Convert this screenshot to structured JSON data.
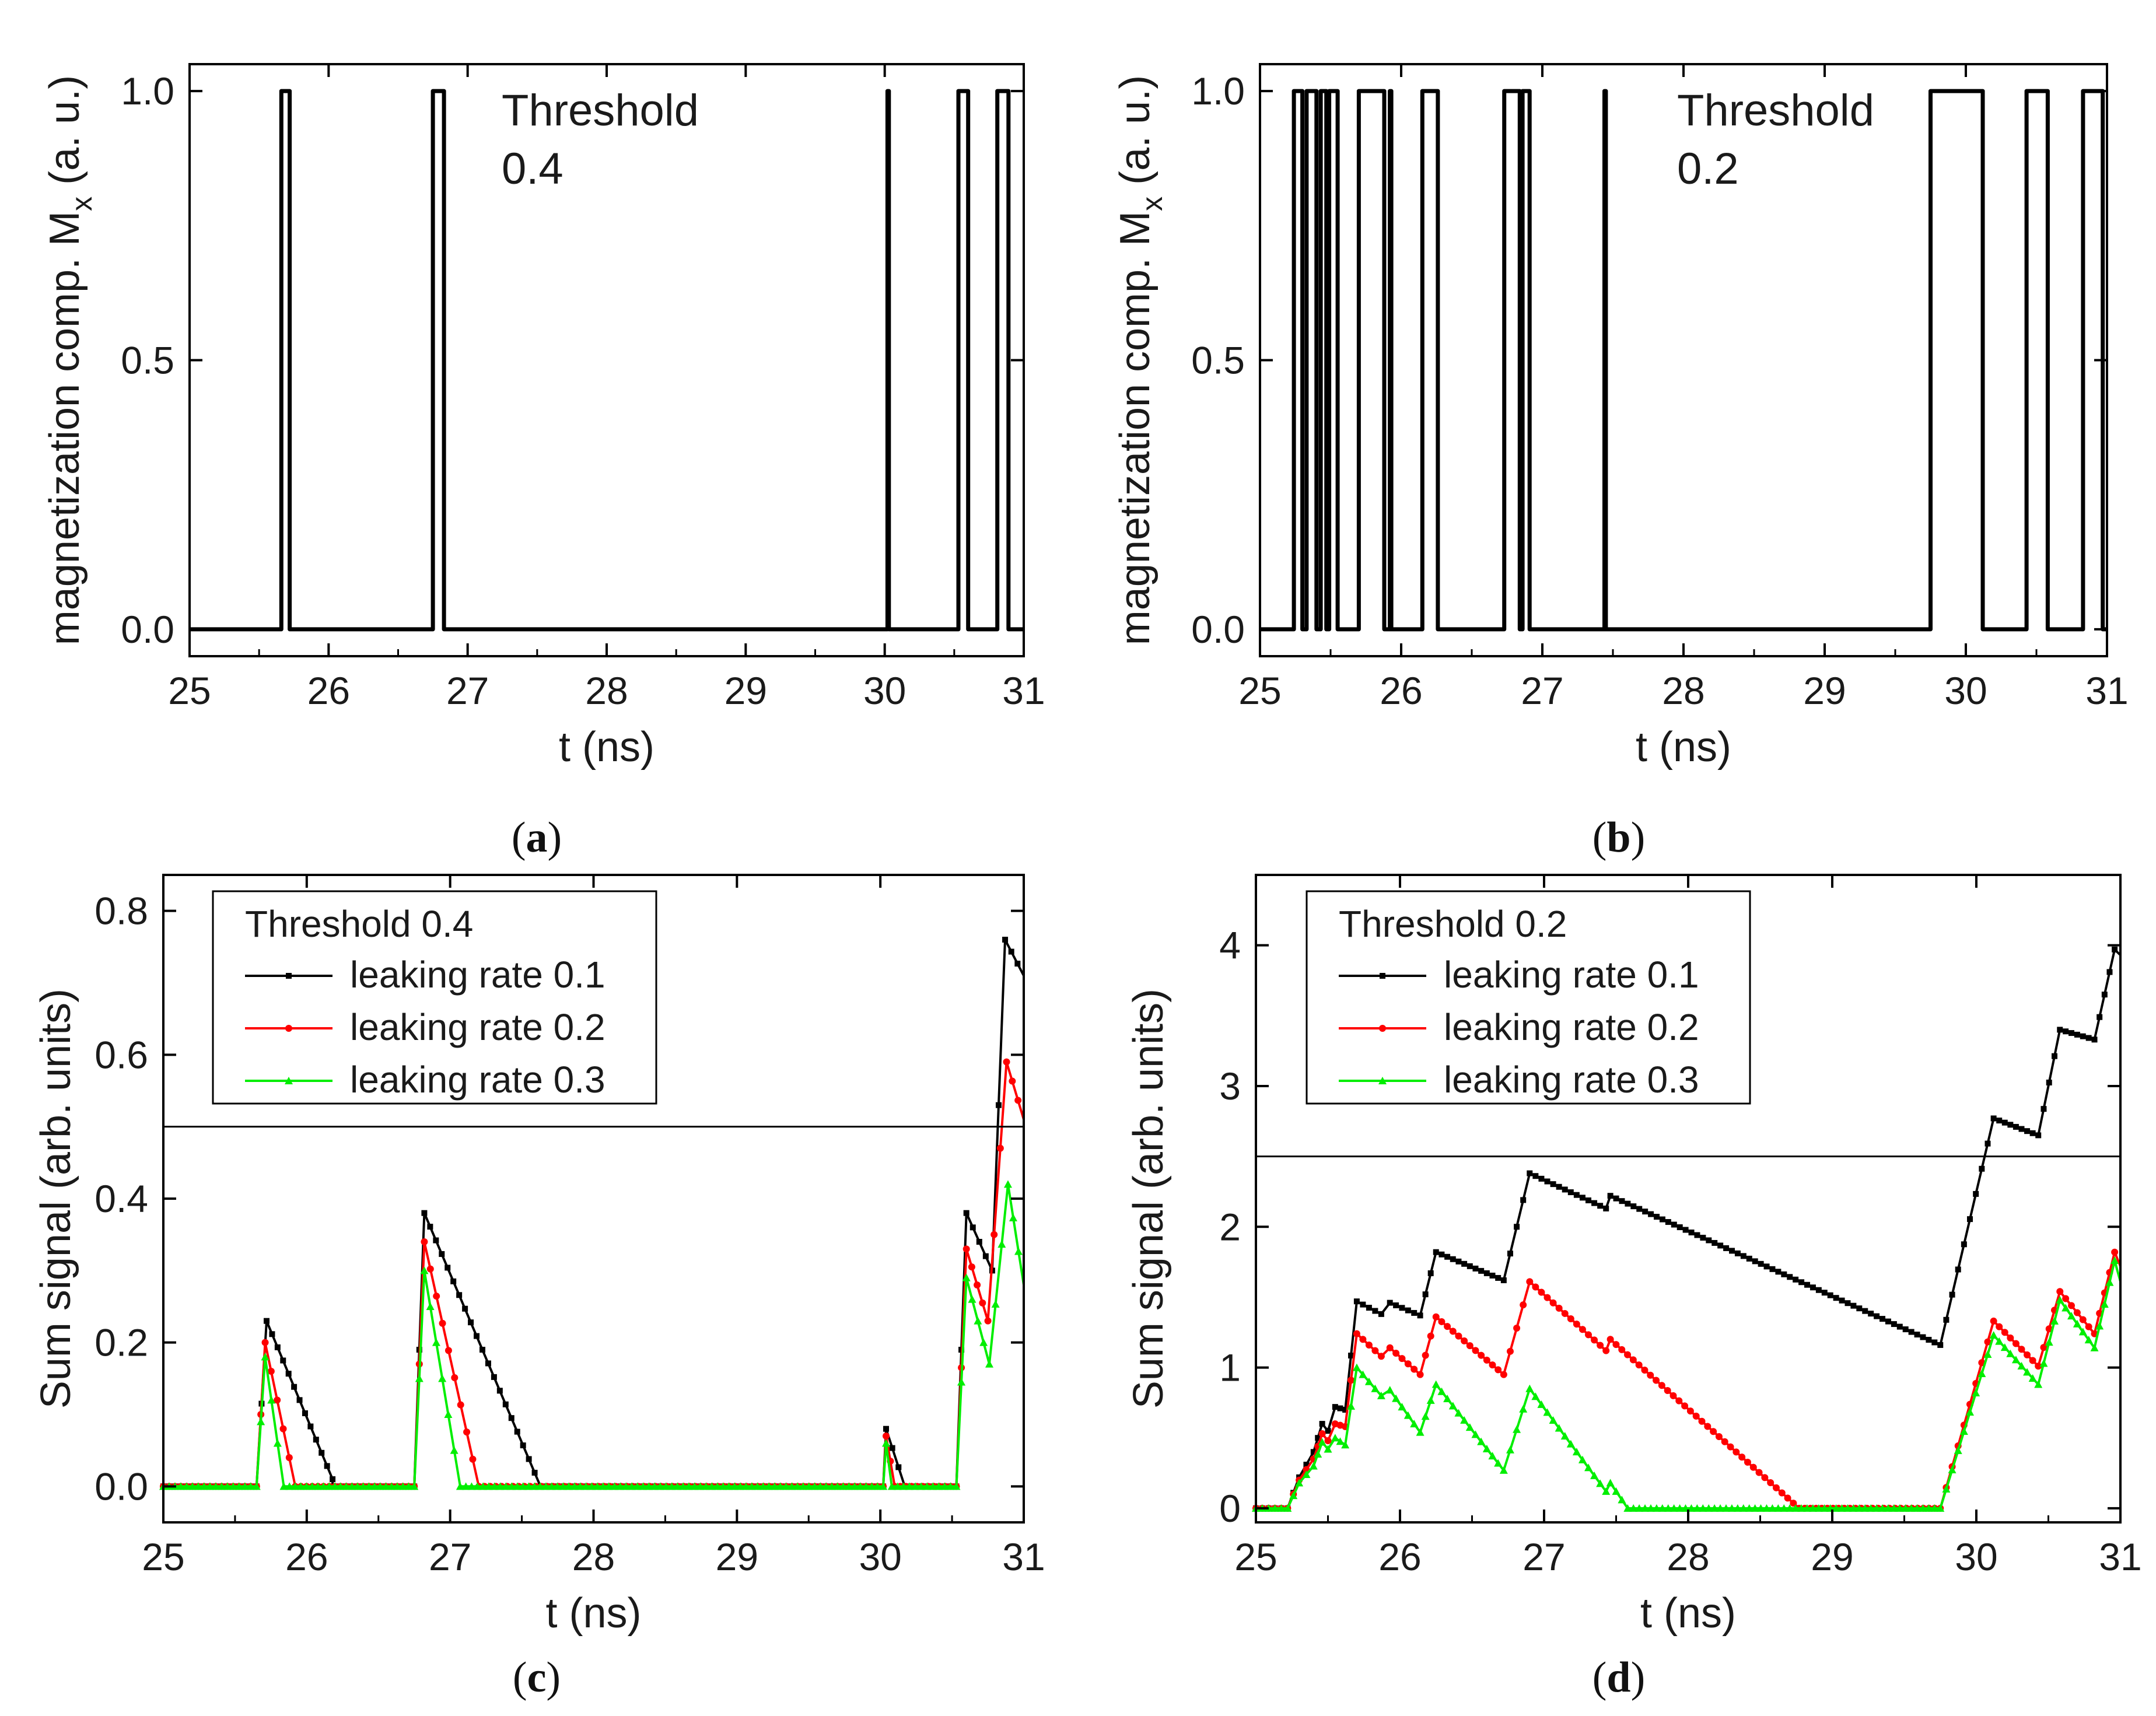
{
  "chart_data": [
    {
      "id": "a",
      "type": "line",
      "caption_letter": "a",
      "xlabel": "t (ns)",
      "ylabel": "magnetization comp. M",
      "ylabel_sub": "x",
      "ylabel_tail": " (a. u.)",
      "xlim": [
        25,
        31
      ],
      "ylim": [
        -0.05,
        1.05
      ],
      "xticks": [
        "25",
        "26",
        "27",
        "28",
        "29",
        "30",
        "31"
      ],
      "yticks": [
        "0.0",
        "0.5",
        "1.0"
      ],
      "annotation": [
        "Threshold",
        "0.4"
      ],
      "series": [
        {
          "name": "Mx",
          "color": "#000000",
          "pulses": [
            [
              25.66,
              25.72
            ],
            [
              26.75,
              26.83
            ],
            [
              30.02,
              30.03
            ],
            [
              30.53,
              30.6
            ],
            [
              30.81,
              30.89
            ]
          ]
        }
      ]
    },
    {
      "id": "b",
      "type": "line",
      "caption_letter": "b",
      "xlabel": "t (ns)",
      "ylabel": "magnetization comp. M",
      "ylabel_sub": "x",
      "ylabel_tail": " (a. u.)",
      "xlim": [
        25,
        31
      ],
      "ylim": [
        -0.05,
        1.05
      ],
      "xticks": [
        "25",
        "26",
        "27",
        "28",
        "29",
        "30",
        "31"
      ],
      "yticks": [
        "0.0",
        "0.5",
        "1.0"
      ],
      "annotation": [
        "Threshold",
        "0.2"
      ],
      "series": [
        {
          "name": "Mx",
          "color": "#000000",
          "pulses": [
            [
              25.24,
              25.3
            ],
            [
              25.33,
              25.4
            ],
            [
              25.43,
              25.47
            ],
            [
              25.49,
              25.55
            ],
            [
              25.7,
              25.88
            ],
            [
              25.92,
              25.93
            ],
            [
              26.15,
              26.26
            ],
            [
              26.73,
              26.84
            ],
            [
              26.86,
              26.91
            ],
            [
              27.44,
              27.45
            ],
            [
              29.75,
              30.12
            ],
            [
              30.43,
              30.58
            ],
            [
              30.83,
              30.97
            ]
          ]
        }
      ]
    },
    {
      "id": "c",
      "type": "line",
      "caption_letter": "c",
      "xlabel": "t (ns)",
      "ylabel": "Sum signal (arb. units)",
      "xlim": [
        25,
        31
      ],
      "ylim": [
        -0.05,
        0.85
      ],
      "xticks": [
        "25",
        "26",
        "27",
        "28",
        "29",
        "30",
        "31"
      ],
      "yticks": [
        "0.0",
        "0.2",
        "0.4",
        "0.6",
        "0.8"
      ],
      "threshold_line": 0.5,
      "legend_title": "Threshold 0.4",
      "series": [
        {
          "name": "leaking rate 0.1",
          "color": "#000000",
          "marker": "square",
          "points": [
            [
              25,
              0
            ],
            [
              25.65,
              0
            ],
            [
              25.72,
              0.23
            ],
            [
              26.18,
              0.01
            ],
            [
              26.18,
              0
            ],
            [
              26.75,
              0
            ],
            [
              26.82,
              0.38
            ],
            [
              27.63,
              0
            ],
            [
              30.02,
              0
            ],
            [
              30.04,
              0.08
            ],
            [
              30.17,
              0
            ],
            [
              30.53,
              0
            ],
            [
              30.6,
              0.38
            ],
            [
              30.78,
              0.3
            ],
            [
              30.87,
              0.76
            ],
            [
              31.0,
              0.71
            ]
          ]
        },
        {
          "name": "leaking rate 0.2",
          "color": "#ff0000",
          "marker": "circle",
          "points": [
            [
              25,
              0
            ],
            [
              25.65,
              0
            ],
            [
              25.71,
              0.2
            ],
            [
              25.92,
              0
            ],
            [
              26.75,
              0
            ],
            [
              26.82,
              0.34
            ],
            [
              27.2,
              0
            ],
            [
              30.02,
              0
            ],
            [
              30.04,
              0.07
            ],
            [
              30.1,
              0
            ],
            [
              30.53,
              0
            ],
            [
              30.6,
              0.33
            ],
            [
              30.75,
              0.23
            ],
            [
              30.88,
              0.59
            ],
            [
              31.0,
              0.51
            ]
          ]
        },
        {
          "name": "leaking rate 0.3",
          "color": "#00ee00",
          "marker": "triangle",
          "points": [
            [
              25,
              0
            ],
            [
              25.65,
              0
            ],
            [
              25.71,
              0.18
            ],
            [
              25.84,
              0
            ],
            [
              26.75,
              0
            ],
            [
              26.82,
              0.3
            ],
            [
              27.07,
              0
            ],
            [
              30.02,
              0
            ],
            [
              30.04,
              0.06
            ],
            [
              30.08,
              0
            ],
            [
              30.53,
              0
            ],
            [
              30.6,
              0.29
            ],
            [
              30.76,
              0.17
            ],
            [
              30.89,
              0.42
            ],
            [
              31.0,
              0.28
            ]
          ]
        }
      ]
    },
    {
      "id": "d",
      "type": "line",
      "caption_letter": "d",
      "xlabel": "t (ns)",
      "ylabel": "Sum signal (arb. units)",
      "xlim": [
        25,
        31
      ],
      "ylim": [
        -0.1,
        4.5
      ],
      "xticks": [
        "25",
        "26",
        "27",
        "28",
        "29",
        "30",
        "31"
      ],
      "yticks": [
        "0",
        "1",
        "2",
        "3",
        "4"
      ],
      "threshold_line": 2.5,
      "legend_title": "Threshold 0.2",
      "series": [
        {
          "name": "leaking rate 0.1",
          "color": "#000000",
          "marker": "square",
          "points": [
            [
              25,
              0
            ],
            [
              25.22,
              0
            ],
            [
              25.3,
              0.22
            ],
            [
              25.4,
              0.4
            ],
            [
              25.46,
              0.6
            ],
            [
              25.5,
              0.55
            ],
            [
              25.55,
              0.72
            ],
            [
              25.62,
              0.7
            ],
            [
              25.7,
              1.47
            ],
            [
              25.87,
              1.38
            ],
            [
              25.93,
              1.46
            ],
            [
              26.14,
              1.37
            ],
            [
              26.25,
              1.82
            ],
            [
              26.72,
              1.62
            ],
            [
              26.9,
              2.38
            ],
            [
              27.43,
              2.13
            ],
            [
              27.46,
              2.22
            ],
            [
              29.75,
              1.16
            ],
            [
              30.12,
              2.77
            ],
            [
              30.43,
              2.65
            ],
            [
              30.58,
              3.4
            ],
            [
              30.82,
              3.33
            ],
            [
              30.96,
              3.97
            ],
            [
              31.0,
              3.93
            ]
          ]
        },
        {
          "name": "leaking rate 0.2",
          "color": "#ff0000",
          "marker": "circle",
          "points": [
            [
              25,
              0
            ],
            [
              25.22,
              0
            ],
            [
              25.3,
              0.2
            ],
            [
              25.4,
              0.35
            ],
            [
              25.46,
              0.53
            ],
            [
              25.5,
              0.48
            ],
            [
              25.55,
              0.6
            ],
            [
              25.62,
              0.58
            ],
            [
              25.7,
              1.24
            ],
            [
              25.87,
              1.08
            ],
            [
              25.93,
              1.14
            ],
            [
              26.14,
              0.95
            ],
            [
              26.25,
              1.36
            ],
            [
              26.72,
              0.95
            ],
            [
              26.9,
              1.61
            ],
            [
              27.43,
              1.12
            ],
            [
              27.46,
              1.2
            ],
            [
              28.77,
              0
            ],
            [
              29.75,
              0
            ],
            [
              30.12,
              1.33
            ],
            [
              30.43,
              1.01
            ],
            [
              30.58,
              1.54
            ],
            [
              30.82,
              1.24
            ],
            [
              30.96,
              1.82
            ],
            [
              31.0,
              1.72
            ]
          ]
        },
        {
          "name": "leaking rate 0.3",
          "color": "#00ee00",
          "marker": "triangle",
          "points": [
            [
              25,
              0
            ],
            [
              25.22,
              0
            ],
            [
              25.3,
              0.18
            ],
            [
              25.4,
              0.3
            ],
            [
              25.46,
              0.47
            ],
            [
              25.5,
              0.42
            ],
            [
              25.55,
              0.5
            ],
            [
              25.62,
              0.45
            ],
            [
              25.7,
              1.0
            ],
            [
              25.87,
              0.8
            ],
            [
              25.93,
              0.84
            ],
            [
              26.14,
              0.54
            ],
            [
              26.25,
              0.88
            ],
            [
              26.72,
              0.27
            ],
            [
              26.9,
              0.85
            ],
            [
              27.43,
              0.12
            ],
            [
              27.46,
              0.18
            ],
            [
              27.58,
              0
            ],
            [
              29.75,
              0
            ],
            [
              30.12,
              1.23
            ],
            [
              30.43,
              0.88
            ],
            [
              30.58,
              1.48
            ],
            [
              30.82,
              1.14
            ],
            [
              30.96,
              1.76
            ],
            [
              31.0,
              1.61
            ]
          ]
        }
      ]
    }
  ]
}
